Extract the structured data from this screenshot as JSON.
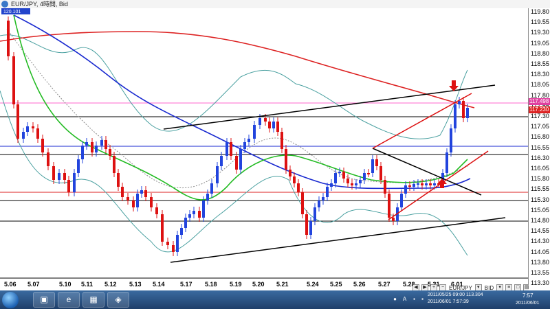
{
  "window": {
    "title": "EUR/JPY, 4時間, Bid"
  },
  "chart": {
    "price_tag": "120.101",
    "y_labels": [
      "119.80",
      "119.55",
      "119.30",
      "119.05",
      "118.80",
      "118.55",
      "118.30",
      "118.05",
      "117.80",
      "117.55",
      "117.30",
      "117.05",
      "116.80",
      "116.55",
      "116.30",
      "116.05",
      "115.80",
      "115.55",
      "115.30",
      "115.05",
      "114.80",
      "114.55",
      "114.30",
      "114.05",
      "113.80",
      "113.55",
      "113.30"
    ],
    "price_marker_1": "117.498",
    "price_marker_2": "117.230",
    "x_labels": [
      "5.06",
      "5.07",
      "5.10",
      "5.11",
      "5.12",
      "5.13",
      "5.14",
      "5.17",
      "5.18",
      "5.19",
      "5.20",
      "5.21",
      "5.24",
      "5.25",
      "5.26",
      "5.27",
      "5.28",
      "5.31",
      "6.01"
    ],
    "colors": {
      "bull": "#2244dd",
      "bear": "#dd1111",
      "ma_red": "#dd2222",
      "ma_blue": "#1a2ad0",
      "ma_green": "#22bb22",
      "bb": "#4aa0a0"
    }
  },
  "controls": {
    "symbol": "EUR/JPY",
    "side": "BID"
  },
  "taskbar": {
    "apps": [
      "folder-icon",
      "ie-icon",
      "explorer-icon",
      "fx-app-icon"
    ],
    "status_line1": "2011/05/25 09:00  113.304",
    "status_line2": "2011/06/01 7:57:39",
    "clock_time": "7:57",
    "clock_date": "2011/06/01"
  }
}
